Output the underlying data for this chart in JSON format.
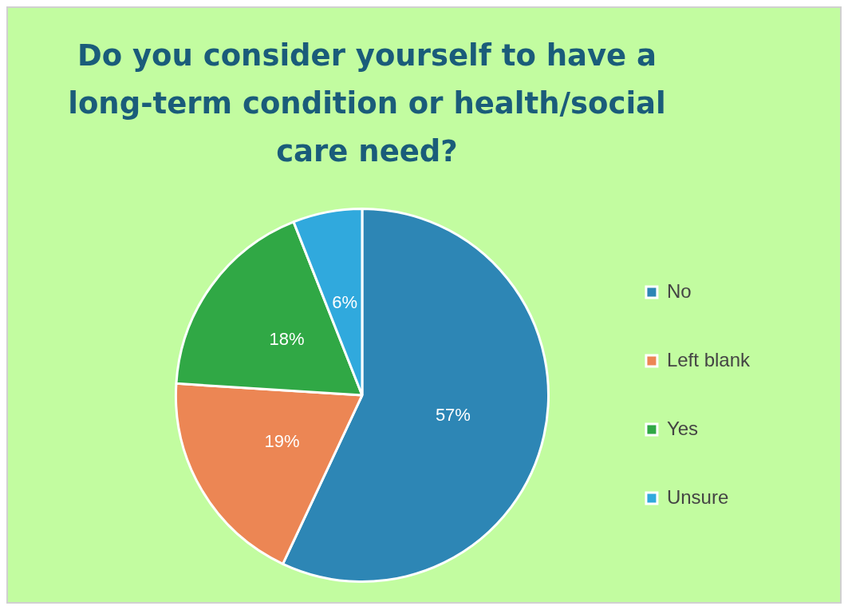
{
  "chart_data": {
    "type": "pie",
    "title": "Do you consider yourself to have a long-term condition or health/social care need?",
    "categories": [
      "No",
      "Left blank",
      "Yes",
      "Unsure"
    ],
    "values": [
      57,
      19,
      18,
      6
    ],
    "value_labels": [
      "57%",
      "19%",
      "18%",
      "6%"
    ],
    "colors": [
      "#2d86b5",
      "#ec8654",
      "#30a845",
      "#30a9dd"
    ],
    "legend": "right"
  }
}
